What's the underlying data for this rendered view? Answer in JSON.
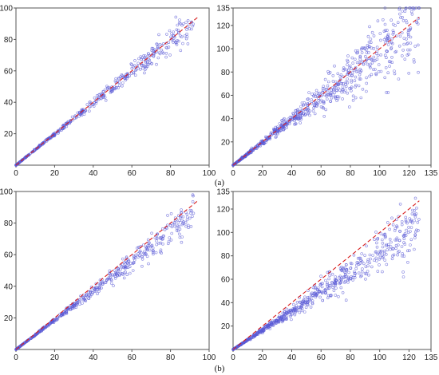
{
  "figure": {
    "panel_labels": {
      "a": "(a)",
      "b": "(b)"
    }
  },
  "colors": {
    "points": "#5b5bd6",
    "reference_line": "#d81e1e",
    "axes": "#555555"
  },
  "chart_data": [
    {
      "type": "scatter",
      "panel": "a-left",
      "title": "",
      "xlabel": "",
      "ylabel": "",
      "xlim": [
        0,
        100
      ],
      "ylim": [
        0,
        100
      ],
      "xticks": [
        0,
        20,
        40,
        60,
        80,
        100
      ],
      "yticks": [
        20,
        40,
        60,
        80,
        100
      ],
      "reference_line": {
        "x": [
          0,
          94
        ],
        "y": [
          0,
          94
        ]
      },
      "points": {
        "count": 450,
        "x_range": [
          0,
          92
        ],
        "slope": 0.99,
        "spread": 0.04
      },
      "grid": false,
      "legend": "none"
    },
    {
      "type": "scatter",
      "panel": "a-right",
      "title": "",
      "xlabel": "",
      "ylabel": "",
      "xlim": [
        0,
        135
      ],
      "ylim": [
        0,
        135
      ],
      "xticks": [
        0,
        20,
        40,
        60,
        80,
        100,
        120,
        135
      ],
      "yticks": [
        20,
        40,
        60,
        80,
        100,
        120,
        135
      ],
      "reference_line": {
        "x": [
          0,
          127
        ],
        "y": [
          0,
          127
        ]
      },
      "points": {
        "count": 700,
        "x_range": [
          0,
          127
        ],
        "slope": 0.97,
        "spread": 0.12
      },
      "grid": false,
      "legend": "none"
    },
    {
      "type": "scatter",
      "panel": "b-left",
      "title": "",
      "xlabel": "",
      "ylabel": "",
      "xlim": [
        0,
        100
      ],
      "ylim": [
        0,
        100
      ],
      "xticks": [
        0,
        20,
        40,
        60,
        80,
        100
      ],
      "yticks": [
        20,
        40,
        60,
        80,
        100
      ],
      "reference_line": {
        "x": [
          0,
          94
        ],
        "y": [
          0,
          94
        ]
      },
      "points": {
        "count": 500,
        "x_range": [
          0,
          92
        ],
        "slope": 0.93,
        "spread": 0.05
      },
      "grid": false,
      "legend": "none"
    },
    {
      "type": "scatter",
      "panel": "b-right",
      "title": "",
      "xlabel": "",
      "ylabel": "",
      "xlim": [
        0,
        135
      ],
      "ylim": [
        0,
        135
      ],
      "xticks": [
        0,
        20,
        40,
        60,
        80,
        100,
        120,
        135
      ],
      "yticks": [
        20,
        40,
        60,
        80,
        100,
        120,
        135
      ],
      "reference_line": {
        "x": [
          0,
          127
        ],
        "y": [
          0,
          127
        ]
      },
      "points": {
        "count": 700,
        "x_range": [
          0,
          127
        ],
        "slope": 0.82,
        "spread": 0.1
      },
      "grid": false,
      "legend": "none"
    }
  ]
}
